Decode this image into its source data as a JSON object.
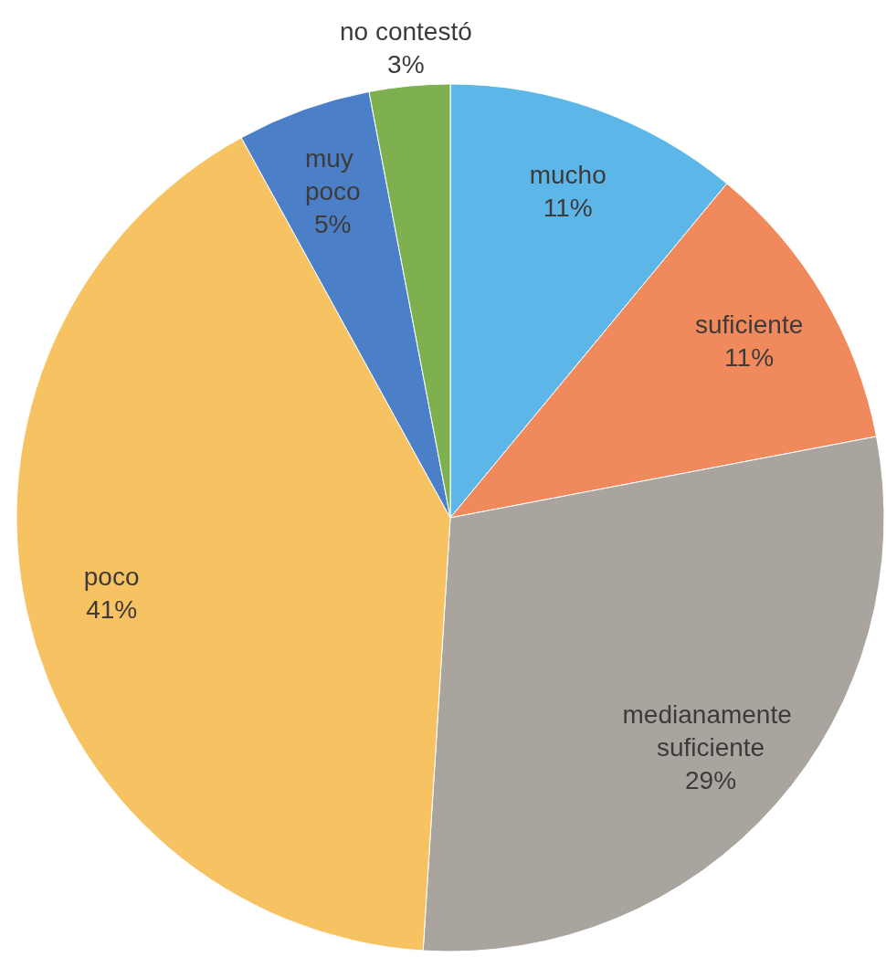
{
  "chart_data": {
    "type": "pie",
    "categories": [
      "mucho",
      "suficiente",
      "medianamente suficiente",
      "poco",
      "muy poco",
      "no contestó"
    ],
    "values": [
      11,
      11,
      29,
      41,
      5,
      3
    ],
    "colors": [
      "#5cb6e8",
      "#f08a5d",
      "#aaa49f",
      "#f7c262",
      "#4b80c9",
      "#7eb04f"
    ],
    "value_labels": [
      "11%",
      "11%",
      "29%",
      "41%",
      "5%",
      "3%"
    ]
  }
}
